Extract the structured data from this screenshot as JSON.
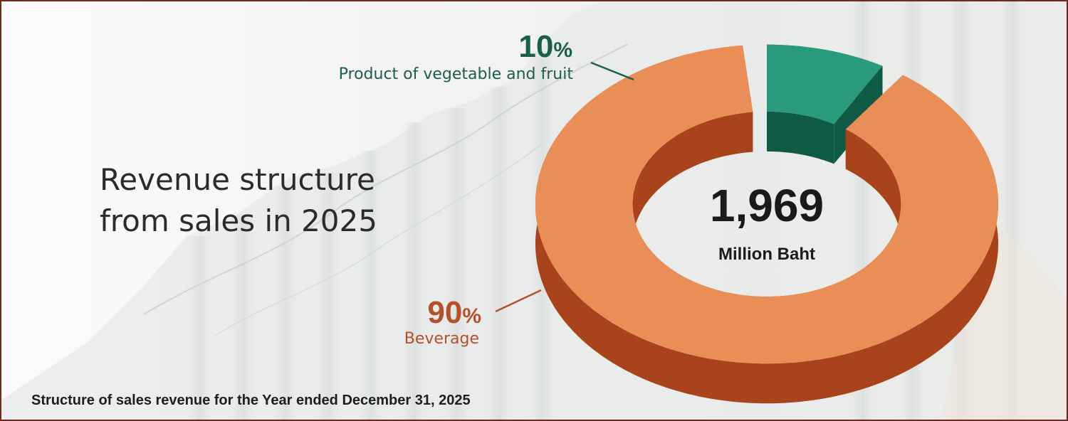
{
  "title_lines": [
    "Revenue structure",
    "from sales in 2025"
  ],
  "footnote": "Structure of sales revenue for the Year ended December 31, 2025",
  "center": {
    "value": "1,969",
    "unit": "Million Baht"
  },
  "chart_data": {
    "type": "pie",
    "variant": "3d-donut",
    "total": 1969,
    "total_unit": "Million Baht",
    "slices": [
      {
        "label": "Product of vegetable and fruit",
        "value": 10,
        "display": "10",
        "unit": "%",
        "color": "#2a9a7e",
        "side_color": "#0e5a45",
        "text_color": "#1b5f4a"
      },
      {
        "label": "Beverage",
        "value": 90,
        "display": "90",
        "unit": "%",
        "color": "#ea8e57",
        "side_color": "#a9431c",
        "text_color": "#b5502a"
      }
    ]
  }
}
